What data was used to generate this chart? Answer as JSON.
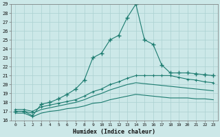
{
  "bg_color": "#cce8e8",
  "grid_color": "#aad0d0",
  "line_color": "#1a7a6e",
  "xlabel": "Humidex (Indice chaleur)",
  "xlim": [
    -0.5,
    23.5
  ],
  "ylim": [
    16,
    29
  ],
  "yticks": [
    16,
    17,
    18,
    19,
    20,
    21,
    22,
    23,
    24,
    25,
    26,
    27,
    28,
    29
  ],
  "xticks": [
    0,
    1,
    2,
    3,
    4,
    5,
    6,
    7,
    8,
    9,
    10,
    11,
    12,
    13,
    14,
    15,
    16,
    17,
    18,
    19,
    20,
    21,
    22,
    23
  ],
  "line1_x": [
    0,
    1,
    2,
    3,
    4,
    5,
    6,
    7,
    8,
    9,
    10,
    11,
    12,
    13,
    14,
    15,
    16,
    17,
    18,
    19,
    20,
    21,
    22,
    23
  ],
  "line1_y": [
    17.0,
    17.0,
    16.5,
    17.8,
    18.0,
    18.4,
    18.9,
    19.5,
    20.5,
    23.0,
    23.5,
    25.0,
    25.5,
    27.5,
    29.0,
    25.0,
    24.5,
    22.2,
    21.3,
    21.3,
    21.3,
    21.2,
    21.1,
    21.0
  ],
  "line2_x": [
    0,
    1,
    2,
    3,
    4,
    5,
    6,
    7,
    8,
    9,
    10,
    11,
    12,
    13,
    14,
    15,
    16,
    17,
    18,
    19,
    20,
    21,
    22,
    23
  ],
  "line2_y": [
    17.2,
    17.2,
    17.0,
    17.5,
    17.7,
    17.9,
    18.1,
    18.3,
    18.7,
    19.2,
    19.5,
    20.0,
    20.3,
    20.7,
    21.0,
    21.0,
    21.0,
    21.0,
    21.0,
    20.8,
    20.6,
    20.5,
    20.3,
    20.2
  ],
  "line3_x": [
    0,
    1,
    2,
    3,
    4,
    5,
    6,
    7,
    8,
    9,
    10,
    11,
    12,
    13,
    14,
    15,
    16,
    17,
    18,
    19,
    20,
    21,
    22,
    23
  ],
  "line3_y": [
    17.0,
    17.0,
    16.8,
    17.2,
    17.4,
    17.6,
    17.8,
    18.0,
    18.3,
    18.7,
    19.0,
    19.4,
    19.7,
    20.0,
    20.2,
    20.1,
    20.0,
    19.9,
    19.8,
    19.7,
    19.6,
    19.5,
    19.4,
    19.3
  ],
  "line4_x": [
    0,
    1,
    2,
    3,
    4,
    5,
    6,
    7,
    8,
    9,
    10,
    11,
    12,
    13,
    14,
    15,
    16,
    17,
    18,
    19,
    20,
    21,
    22,
    23
  ],
  "line4_y": [
    16.8,
    16.8,
    16.4,
    16.8,
    17.0,
    17.1,
    17.3,
    17.4,
    17.6,
    17.9,
    18.0,
    18.3,
    18.5,
    18.7,
    18.9,
    18.8,
    18.7,
    18.6,
    18.5,
    18.5,
    18.5,
    18.4,
    18.4,
    18.3
  ]
}
